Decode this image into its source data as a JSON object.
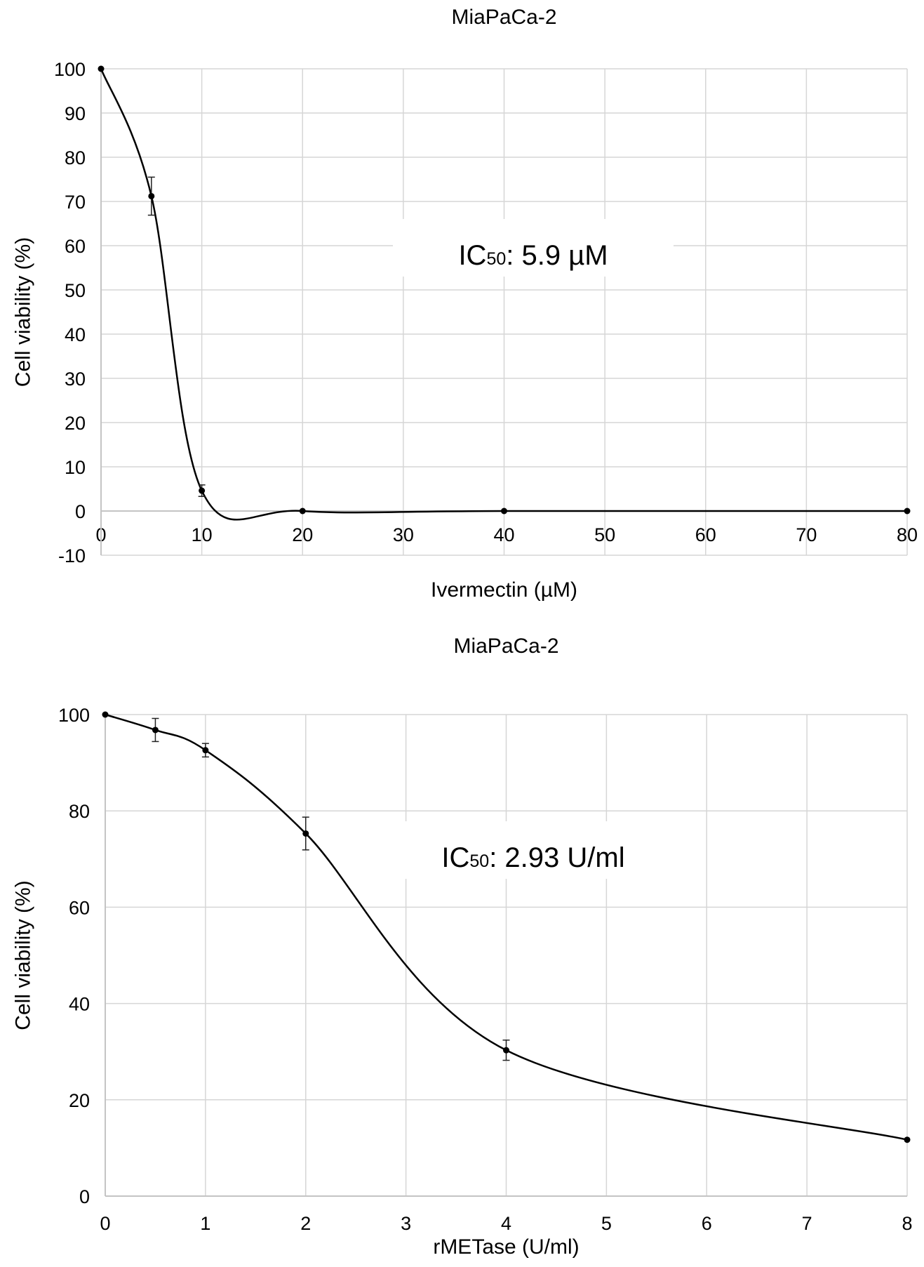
{
  "chart_data": [
    {
      "type": "line",
      "title": "MiaPaCa-2",
      "xlabel": "Ivermectin (µM)",
      "ylabel": "Cell viability (%)",
      "x_axis": "categorical",
      "categories": [
        "0",
        "10",
        "20",
        "30",
        "40",
        "50",
        "60",
        "70",
        "80"
      ],
      "ylim": [
        -10,
        100
      ],
      "yticks": [
        -10,
        0,
        10,
        20,
        30,
        40,
        50,
        60,
        70,
        80,
        90,
        100
      ],
      "grid": true,
      "smooth": true,
      "annotation": {
        "prefix": "IC",
        "subscript": "50",
        "suffix": ": 5.9 µM"
      },
      "points": [
        {
          "x": 0,
          "y": 100,
          "err": 0
        },
        {
          "x": 5,
          "y": 71.2,
          "err": 4.3
        },
        {
          "x": 10,
          "y": 4.6,
          "err": 1.3
        },
        {
          "x": 20,
          "y": 0,
          "err": 0
        },
        {
          "x": 40,
          "y": 0,
          "err": 0
        },
        {
          "x": 80,
          "y": 0,
          "err": 0
        }
      ]
    },
    {
      "type": "line",
      "title": "MiaPaCa-2",
      "xlabel": "rMETase (U/ml)",
      "ylabel": "Cell viability (%)",
      "x_axis": "categorical",
      "categories": [
        "0",
        "1",
        "2",
        "3",
        "4",
        "5",
        "6",
        "7",
        "8"
      ],
      "ylim": [
        0,
        100
      ],
      "yticks": [
        0,
        20,
        40,
        60,
        80,
        100
      ],
      "grid": true,
      "smooth": true,
      "annotation": {
        "prefix": "IC",
        "subscript": "50",
        "suffix": ": 2.93 U/ml"
      },
      "points": [
        {
          "x": 0,
          "y": 100,
          "err": 0
        },
        {
          "x": 0.5,
          "y": 96.8,
          "err": 2.4
        },
        {
          "x": 1,
          "y": 92.6,
          "err": 1.4
        },
        {
          "x": 2,
          "y": 75.3,
          "err": 3.4
        },
        {
          "x": 4,
          "y": 30.3,
          "err": 2.1
        },
        {
          "x": 8,
          "y": 11.7,
          "err": 0
        }
      ]
    }
  ]
}
